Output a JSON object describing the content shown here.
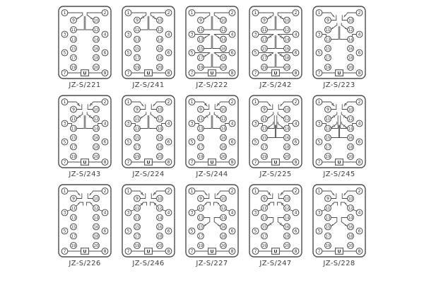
{
  "page": {
    "background": "#ffffff",
    "line_color": "#4c4c4c",
    "label_color": "#3d3d3d"
  },
  "terminals": {
    "outer_left": [
      1,
      3,
      5,
      7
    ],
    "outer_right": [
      2,
      4,
      6,
      8
    ],
    "inner_left": [
      9,
      11,
      13,
      15,
      17,
      19
    ],
    "inner_right": [
      10,
      12,
      14,
      16,
      18,
      20
    ]
  },
  "coil_label": "U",
  "diagrams": [
    {
      "label": "JZ-S/221",
      "config": "pair1",
      "barred": false
    },
    {
      "label": "JZ-S/241",
      "config": "pair1",
      "barred": true
    },
    {
      "label": "JZ-S/222",
      "config": "pair3",
      "barred": false
    },
    {
      "label": "JZ-S/242",
      "config": "pair3",
      "barred": true
    },
    {
      "label": "JZ-S/223",
      "config": "top_co",
      "barred": false
    },
    {
      "label": "JZ-S/243",
      "config": "top_co",
      "barred": true
    },
    {
      "label": "JZ-S/224",
      "config": "top_co",
      "barred": false
    },
    {
      "label": "JZ-S/244",
      "config": "top_co",
      "barred": true
    },
    {
      "label": "JZ-S/225",
      "config": "top_co2",
      "barred": false
    },
    {
      "label": "JZ-S/245",
      "config": "top_co2",
      "barred": true
    },
    {
      "label": "JZ-S/226",
      "config": "top_mid",
      "barred": false
    },
    {
      "label": "JZ-S/246",
      "config": "top_mid",
      "barred": true
    },
    {
      "label": "JZ-S/227",
      "config": "top_mid_co",
      "barred": false
    },
    {
      "label": "JZ-S/247",
      "config": "top_mid_co",
      "barred": true
    },
    {
      "label": "JZ-S/228",
      "config": "top_mid_co",
      "barred": false
    }
  ]
}
